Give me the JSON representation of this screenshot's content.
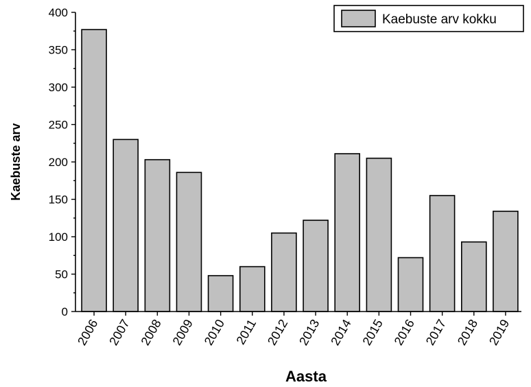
{
  "chart_data": {
    "type": "bar",
    "categories": [
      "2006",
      "2007",
      "2008",
      "2009",
      "2010",
      "2011",
      "2012",
      "2013",
      "2014",
      "2015",
      "2016",
      "2017",
      "2018",
      "2019"
    ],
    "series": [
      {
        "name": "Kaebuste arv kokku",
        "values": [
          377,
          230,
          203,
          186,
          48,
          60,
          105,
          122,
          211,
          205,
          72,
          155,
          93,
          134
        ],
        "color": "#c0c0c0"
      }
    ],
    "xlabel": "Aasta",
    "ylabel": "Kaebuste arv",
    "ylim": [
      0,
      400
    ],
    "yticks": [
      "0",
      "50",
      "100",
      "150",
      "200",
      "250",
      "300",
      "350",
      "400"
    ],
    "grid": false,
    "legend": "top-right"
  }
}
